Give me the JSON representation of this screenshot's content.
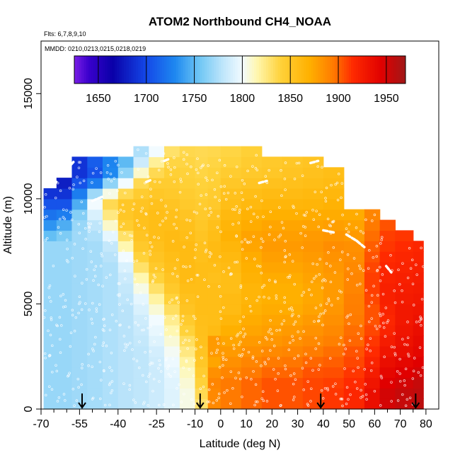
{
  "chart_data": {
    "type": "heatmap",
    "title": "ATOM2 Northbound CH4_NOAA",
    "subtitle_lines": [
      "Flts: 6,7,8,9,10",
      "MMDD: 0210,0213,0215,0218,0219"
    ],
    "xlabel": "Latitude (deg N)",
    "ylabel": "Altitude (m)",
    "xlim": [
      -70,
      85
    ],
    "ylim": [
      0,
      17500
    ],
    "x_ticks": [
      -70,
      -55,
      -40,
      -25,
      -10,
      0,
      10,
      20,
      30,
      40,
      50,
      60,
      70,
      80
    ],
    "x_tick_labels": [
      "-70",
      "-55",
      "-40",
      "-25",
      "-10",
      "0",
      "10",
      "20",
      "30",
      "40",
      "50",
      "60",
      "70",
      "80"
    ],
    "x_minor_ticks": [
      -65,
      -60,
      -50,
      -45,
      -35,
      -30,
      -20,
      -15,
      -5,
      5,
      15,
      25,
      35,
      45,
      55,
      65,
      75
    ],
    "y_ticks": [
      0,
      5000,
      10000,
      15000
    ],
    "y_tick_labels": [
      "0",
      "5000",
      "10000",
      "15000"
    ],
    "colorbar": {
      "range": [
        1625,
        1970
      ],
      "ticks": [
        1650,
        1700,
        1750,
        1800,
        1850,
        1900,
        1950
      ],
      "tick_labels": [
        "1650",
        "1700",
        "1750",
        "1800",
        "1850",
        "1900",
        "1950"
      ],
      "stops": [
        {
          "v": 1625,
          "c": "#7a1ee6"
        },
        {
          "v": 1640,
          "c": "#3a00cc"
        },
        {
          "v": 1665,
          "c": "#0a00a8"
        },
        {
          "v": 1700,
          "c": "#1448e8"
        },
        {
          "v": 1730,
          "c": "#1e88f0"
        },
        {
          "v": 1755,
          "c": "#6ec6f4"
        },
        {
          "v": 1780,
          "c": "#bfe6fb"
        },
        {
          "v": 1800,
          "c": "#f2fbff"
        },
        {
          "v": 1815,
          "c": "#fff7b0"
        },
        {
          "v": 1840,
          "c": "#ffd23a"
        },
        {
          "v": 1870,
          "c": "#ffb000"
        },
        {
          "v": 1895,
          "c": "#ff7a00"
        },
        {
          "v": 1915,
          "c": "#ff2a00"
        },
        {
          "v": 1945,
          "c": "#e00000"
        },
        {
          "v": 1970,
          "c": "#a01818"
        }
      ]
    },
    "columns_note": "CH4 (ppb) per latitude strip; values listed from 0 m upward in 500 m layers",
    "columns": [
      {
        "lat0": -69,
        "lat1": -64,
        "top": 10500,
        "ch4": [
          1768,
          1768,
          1768,
          1768,
          1768,
          1768,
          1768,
          1768,
          1768,
          1768,
          1768,
          1768,
          1768,
          1768,
          1768,
          1768,
          1752,
          1735,
          1720,
          1705,
          1690
        ]
      },
      {
        "lat0": -64,
        "lat1": -58,
        "top": 11000,
        "ch4": [
          1768,
          1768,
          1768,
          1768,
          1768,
          1768,
          1768,
          1768,
          1768,
          1768,
          1768,
          1768,
          1768,
          1768,
          1768,
          1768,
          1760,
          1745,
          1725,
          1705,
          1690,
          1680
        ]
      },
      {
        "lat0": -58,
        "lat1": -52,
        "top": 12000,
        "ch4": [
          1770,
          1770,
          1770,
          1770,
          1770,
          1770,
          1770,
          1770,
          1770,
          1770,
          1770,
          1770,
          1770,
          1770,
          1770,
          1770,
          1770,
          1768,
          1762,
          1745,
          1725,
          1705,
          1690,
          1690
        ]
      },
      {
        "lat0": -52,
        "lat1": -46,
        "top": 12000,
        "ch4": [
          1772,
          1772,
          1772,
          1772,
          1772,
          1772,
          1772,
          1772,
          1772,
          1772,
          1772,
          1772,
          1772,
          1772,
          1772,
          1772,
          1775,
          1780,
          1790,
          1800,
          1770,
          1725,
          1705,
          1710
        ]
      },
      {
        "lat0": -46,
        "lat1": -40,
        "top": 12000,
        "ch4": [
          1775,
          1775,
          1775,
          1775,
          1775,
          1775,
          1775,
          1775,
          1775,
          1775,
          1775,
          1775,
          1775,
          1775,
          1778,
          1782,
          1795,
          1810,
          1825,
          1835,
          1805,
          1765,
          1730,
          1728
        ]
      },
      {
        "lat0": -40,
        "lat1": -34,
        "top": 12000,
        "ch4": [
          1778,
          1778,
          1778,
          1778,
          1778,
          1778,
          1778,
          1778,
          1778,
          1778,
          1780,
          1782,
          1785,
          1790,
          1800,
          1815,
          1830,
          1845,
          1850,
          1850,
          1835,
          1800,
          1765,
          1750
        ]
      },
      {
        "lat0": -34,
        "lat1": -28,
        "top": 12500,
        "ch4": [
          1780,
          1780,
          1780,
          1780,
          1780,
          1780,
          1782,
          1784,
          1786,
          1790,
          1795,
          1805,
          1815,
          1830,
          1840,
          1848,
          1852,
          1855,
          1855,
          1852,
          1845,
          1835,
          1810,
          1785,
          1775
        ]
      },
      {
        "lat0": -28,
        "lat1": -22,
        "top": 12500,
        "ch4": [
          1785,
          1785,
          1785,
          1785,
          1786,
          1788,
          1792,
          1796,
          1800,
          1808,
          1818,
          1830,
          1840,
          1848,
          1852,
          1855,
          1858,
          1858,
          1858,
          1855,
          1850,
          1845,
          1835,
          1820,
          1800
        ]
      },
      {
        "lat0": -22,
        "lat1": -16,
        "top": 12500,
        "ch4": [
          1792,
          1792,
          1793,
          1795,
          1798,
          1802,
          1808,
          1815,
          1822,
          1832,
          1840,
          1848,
          1852,
          1856,
          1858,
          1860,
          1860,
          1858,
          1856,
          1852,
          1848,
          1845,
          1842,
          1838,
          1830
        ]
      },
      {
        "lat0": -16,
        "lat1": -10,
        "top": 12500,
        "ch4": [
          1805,
          1805,
          1808,
          1812,
          1818,
          1825,
          1832,
          1840,
          1846,
          1852,
          1855,
          1858,
          1860,
          1860,
          1860,
          1860,
          1858,
          1856,
          1852,
          1848,
          1845,
          1842,
          1840,
          1838,
          1836
        ]
      },
      {
        "lat0": -10,
        "lat1": -5,
        "top": 12500,
        "ch4": [
          1830,
          1835,
          1840,
          1845,
          1850,
          1852,
          1855,
          1856,
          1857,
          1858,
          1858,
          1858,
          1858,
          1858,
          1856,
          1855,
          1852,
          1850,
          1848,
          1845,
          1842,
          1840,
          1838,
          1836,
          1835
        ]
      },
      {
        "lat0": -5,
        "lat1": 0,
        "top": 12500,
        "ch4": [
          1888,
          1888,
          1890,
          1885,
          1875,
          1880,
          1880,
          1860,
          1858,
          1858,
          1858,
          1858,
          1856,
          1858,
          1860,
          1860,
          1858,
          1856,
          1852,
          1848,
          1845,
          1842,
          1840,
          1838,
          1836
        ]
      },
      {
        "lat0": 0,
        "lat1": 8,
        "top": 12500,
        "ch4": [
          1895,
          1895,
          1895,
          1890,
          1885,
          1880,
          1875,
          1870,
          1865,
          1860,
          1860,
          1858,
          1858,
          1860,
          1862,
          1865,
          1868,
          1866,
          1862,
          1858,
          1855,
          1850,
          1845,
          1840,
          1838
        ]
      },
      {
        "lat0": 8,
        "lat1": 16,
        "top": 12500,
        "ch4": [
          1900,
          1900,
          1900,
          1895,
          1890,
          1885,
          1880,
          1875,
          1872,
          1868,
          1866,
          1866,
          1868,
          1870,
          1872,
          1875,
          1876,
          1872,
          1868,
          1862,
          1858,
          1852,
          1848,
          1845,
          1842
        ]
      },
      {
        "lat0": 16,
        "lat1": 24,
        "top": 12000,
        "ch4": [
          1905,
          1905,
          1905,
          1900,
          1895,
          1888,
          1882,
          1878,
          1875,
          1872,
          1870,
          1870,
          1872,
          1875,
          1878,
          1880,
          1878,
          1875,
          1870,
          1865,
          1860,
          1855,
          1850,
          1848
        ]
      },
      {
        "lat0": 24,
        "lat1": 32,
        "top": 12000,
        "ch4": [
          1905,
          1905,
          1905,
          1900,
          1896,
          1890,
          1885,
          1880,
          1876,
          1872,
          1870,
          1870,
          1872,
          1875,
          1878,
          1880,
          1878,
          1875,
          1870,
          1865,
          1860,
          1856,
          1852,
          1850
        ]
      },
      {
        "lat0": 32,
        "lat1": 40,
        "top": 12000,
        "ch4": [
          1908,
          1908,
          1908,
          1905,
          1900,
          1894,
          1888,
          1884,
          1880,
          1876,
          1874,
          1874,
          1876,
          1878,
          1880,
          1882,
          1880,
          1876,
          1872,
          1866,
          1862,
          1858,
          1855,
          1852
        ]
      },
      {
        "lat0": 40,
        "lat1": 48,
        "top": 11500,
        "ch4": [
          1912,
          1912,
          1910,
          1906,
          1902,
          1898,
          1892,
          1888,
          1885,
          1882,
          1880,
          1880,
          1880,
          1882,
          1884,
          1886,
          1882,
          1878,
          1872,
          1868,
          1864,
          1860,
          1858
        ]
      },
      {
        "lat0": 48,
        "lat1": 56,
        "top": 9500,
        "ch4": [
          1918,
          1918,
          1915,
          1912,
          1908,
          1905,
          1900,
          1898,
          1895,
          1893,
          1892,
          1890,
          1890,
          1888,
          1886,
          1885,
          1880,
          1876,
          1872
        ]
      },
      {
        "lat0": 56,
        "lat1": 62,
        "top": 9500,
        "ch4": [
          1935,
          1935,
          1930,
          1925,
          1920,
          1915,
          1912,
          1908,
          1905,
          1905,
          1908,
          1910,
          1910,
          1908,
          1905,
          1902,
          1898,
          1895,
          1890
        ]
      },
      {
        "lat0": 62,
        "lat1": 68,
        "top": 9000,
        "ch4": [
          1950,
          1950,
          1945,
          1940,
          1935,
          1930,
          1925,
          1920,
          1918,
          1920,
          1922,
          1922,
          1920,
          1918,
          1915,
          1912,
          1910,
          1905
        ]
      },
      {
        "lat0": 68,
        "lat1": 75,
        "top": 8500,
        "ch4": [
          1955,
          1955,
          1950,
          1945,
          1940,
          1935,
          1932,
          1930,
          1928,
          1928,
          1926,
          1924,
          1922,
          1920,
          1918,
          1915,
          1912
        ]
      },
      {
        "lat0": 75,
        "lat1": 79,
        "top": 8000,
        "ch4": [
          1960,
          1958,
          1955,
          1950,
          1945,
          1940,
          1938,
          1935,
          1932,
          1930,
          1928,
          1926,
          1924,
          1922,
          1920,
          1918
        ]
      }
    ],
    "arrows_lat": [
      -54,
      -8,
      39,
      76
    ],
    "flight_track": [
      {
        "lat0": -66.5,
        "lat1": -64.0,
        "alt0": 10600,
        "alt1": 10800
      },
      {
        "lat0": -58.5,
        "lat1": -57.0,
        "alt0": 11600,
        "alt1": 11800
      },
      {
        "lat0": -50.0,
        "lat1": -46.0,
        "alt0": 9900,
        "alt1": 10100
      },
      {
        "lat0": -29.0,
        "lat1": -27.0,
        "alt0": 10800,
        "alt1": 10900
      },
      {
        "lat0": -22.0,
        "lat1": -20.0,
        "alt0": 11800,
        "alt1": 11900
      },
      {
        "lat0": 15.0,
        "lat1": 18.0,
        "alt0": 10750,
        "alt1": 10850
      },
      {
        "lat0": 35.0,
        "lat1": 38.0,
        "alt0": 11700,
        "alt1": 11800
      },
      {
        "lat0": 40.0,
        "lat1": 44.0,
        "alt0": 8500,
        "alt1": 8400
      },
      {
        "lat0": 49.0,
        "lat1": 53.0,
        "alt0": 8300,
        "alt1": 8000
      },
      {
        "lat0": 53.0,
        "lat1": 56.0,
        "alt0": 8000,
        "alt1": 7700
      },
      {
        "lat0": 64.5,
        "lat1": 66.5,
        "alt0": 6800,
        "alt1": 6500
      }
    ]
  }
}
